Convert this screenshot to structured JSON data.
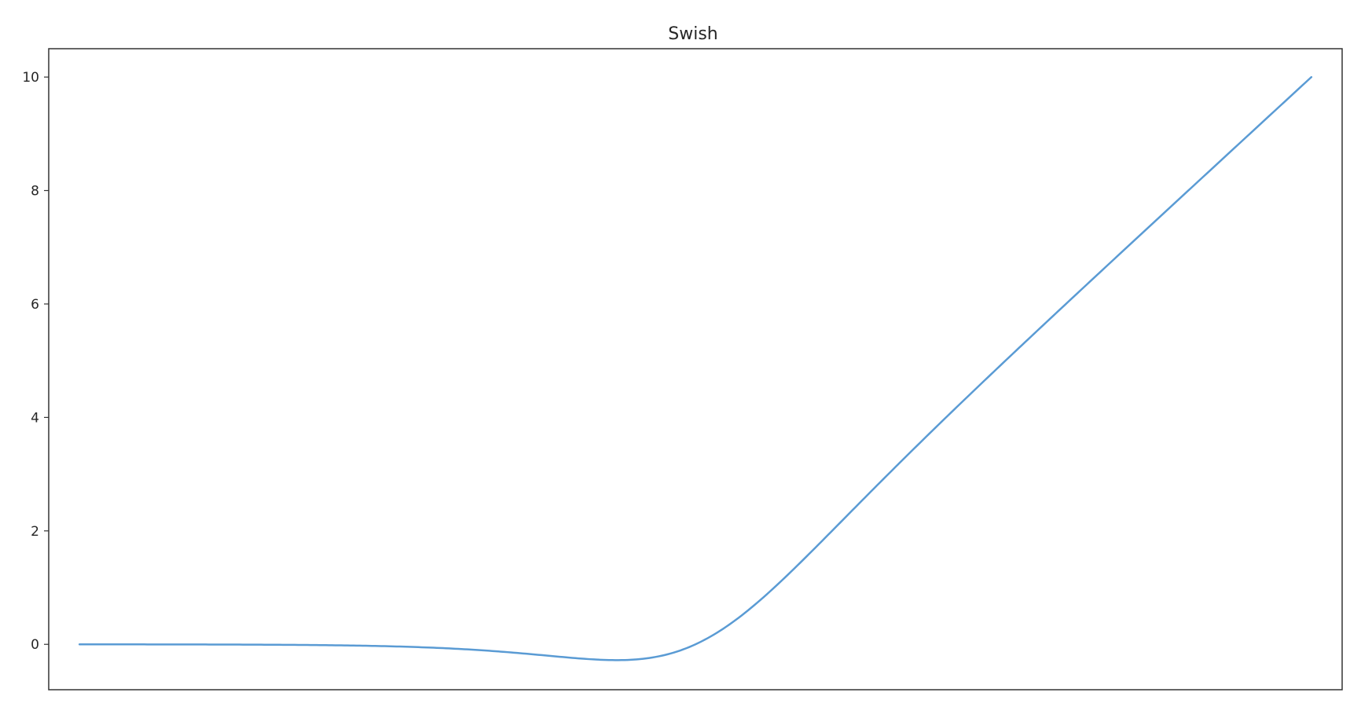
{
  "chart_data": {
    "type": "line",
    "title": "Swish",
    "xlabel": "",
    "ylabel": "",
    "xlim": [
      -10.5,
      10.5
    ],
    "ylim": [
      -0.8,
      10.5
    ],
    "x_ticks_visible": false,
    "y_ticks": [
      0,
      2,
      4,
      6,
      8,
      10
    ],
    "y_tick_labels": [
      "0",
      "2",
      "4",
      "6",
      "8",
      "10"
    ],
    "grid": false,
    "legend": "none",
    "series": [
      {
        "color": "#5a9bd4",
        "function": "x * sigmoid(x)",
        "x_range": [
          -10,
          10
        ],
        "points": [
          [
            -10,
            -0.0005
          ],
          [
            -8,
            -0.0027
          ],
          [
            -6,
            -0.0148
          ],
          [
            -5,
            -0.0335
          ],
          [
            -4,
            -0.0719
          ],
          [
            -3,
            -0.1423
          ],
          [
            -2.5,
            -0.1896
          ],
          [
            -2,
            -0.2384
          ],
          [
            -1.5,
            -0.2736
          ],
          [
            -1.28,
            -0.2785
          ],
          [
            -1,
            -0.2689
          ],
          [
            -0.5,
            -0.1888
          ],
          [
            0,
            0
          ],
          [
            0.5,
            0.3112
          ],
          [
            1,
            0.7311
          ],
          [
            1.5,
            1.2264
          ],
          [
            2,
            1.7616
          ],
          [
            3,
            2.8577
          ],
          [
            4,
            3.9281
          ],
          [
            5,
            4.9665
          ],
          [
            6,
            5.9852
          ],
          [
            8,
            7.9973
          ],
          [
            10,
            9.9995
          ]
        ]
      }
    ]
  }
}
